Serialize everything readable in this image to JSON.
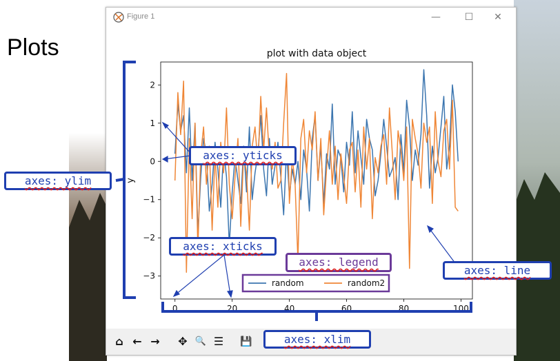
{
  "slide": {
    "heading": "Plots"
  },
  "window": {
    "title": "Figure 1",
    "controls": [
      "—",
      "☐",
      "✕"
    ]
  },
  "toolbar": {
    "buttons": [
      {
        "name": "home-icon",
        "glyph": "⌂"
      },
      {
        "name": "back-icon",
        "glyph": "←"
      },
      {
        "name": "forward-icon",
        "glyph": "→"
      },
      {
        "name": "pan-icon",
        "glyph": "✥"
      },
      {
        "name": "zoom-icon",
        "glyph": "🔍"
      },
      {
        "name": "configure-subplots-icon",
        "glyph": "☰"
      },
      {
        "name": "save-icon",
        "glyph": "💾"
      }
    ]
  },
  "annotations": {
    "yticks": "axes: yticks",
    "ylim": "axes: ylim",
    "xticks": "axes: xticks",
    "legend": "axes: legend",
    "line": "axes: line",
    "xlim": "axes: xlim"
  },
  "colors": {
    "annotation_blue": "#1f3fb0",
    "annotation_purple": "#6b3a99",
    "series1": "#3b75af",
    "series2": "#ef8636"
  },
  "chart_data": {
    "type": "line",
    "title": "plot with data object",
    "xlabel": "",
    "ylabel": "y",
    "xlim": [
      -5,
      104
    ],
    "ylim": [
      -3.6,
      2.6
    ],
    "xticks": [
      0,
      20,
      40,
      60,
      80,
      100
    ],
    "yticks": [
      -3,
      -2,
      -1,
      0,
      1,
      2
    ],
    "legend_position": "bottom-center",
    "grid": false,
    "series": [
      {
        "name": "random",
        "color": "#3b75af",
        "x": [
          0,
          1,
          2,
          3,
          4,
          5,
          6,
          7,
          8,
          9,
          10,
          11,
          12,
          13,
          14,
          15,
          16,
          17,
          18,
          19,
          20,
          21,
          22,
          23,
          24,
          25,
          26,
          27,
          28,
          29,
          30,
          31,
          32,
          33,
          34,
          35,
          36,
          37,
          38,
          39,
          40,
          41,
          42,
          43,
          44,
          45,
          46,
          47,
          48,
          49,
          50,
          51,
          52,
          53,
          54,
          55,
          56,
          57,
          58,
          59,
          60,
          61,
          62,
          63,
          64,
          65,
          66,
          67,
          68,
          69,
          70,
          71,
          72,
          73,
          74,
          75,
          76,
          77,
          78,
          79,
          80,
          81,
          82,
          83,
          84,
          85,
          86,
          87,
          88,
          89,
          90,
          91,
          92,
          93,
          94,
          95,
          96,
          97,
          98,
          99
        ],
        "y": [
          0.2,
          1.5,
          0.8,
          1.2,
          -0.3,
          1.4,
          -0.5,
          1.0,
          -1.9,
          -0.4,
          0.6,
          0.2,
          -1.3,
          -0.6,
          0.5,
          -0.2,
          -1.2,
          0.3,
          -0.4,
          -2.2,
          -0.8,
          0.1,
          -0.5,
          -1.1,
          0.4,
          -0.8,
          0.9,
          -1.0,
          -0.3,
          0.2,
          1.2,
          -0.2,
          -0.9,
          0.6,
          -0.6,
          -0.1,
          0.5,
          -0.4,
          -1.4,
          0.3,
          -0.9,
          -0.2,
          -0.6,
          0.0,
          -1.0,
          0.3,
          -0.2,
          -1.3,
          0.6,
          1.2,
          -0.5,
          0.4,
          -1.1,
          0.2,
          -0.2,
          1.5,
          -0.6,
          0.3,
          0.1,
          -0.8,
          0.5,
          -0.1,
          1.3,
          -0.3,
          0.8,
          0.1,
          -0.6,
          1.1,
          0.6,
          0.3,
          -0.9,
          -0.5,
          0.2,
          1.1,
          0.4,
          -0.4,
          -0.2,
          0.1,
          -1.0,
          0.7,
          -0.3,
          1.6,
          0.9,
          -0.5,
          0.3,
          -0.1,
          0.7,
          2.4,
          1.2,
          -0.7,
          0.4,
          -0.3,
          0.1,
          0.9,
          1.7,
          -0.2,
          0.4,
          2.0,
          1.3,
          0.0
        ]
      },
      {
        "name": "random2",
        "color": "#ef8636",
        "x": [
          0,
          1,
          2,
          3,
          4,
          5,
          6,
          7,
          8,
          9,
          10,
          11,
          12,
          13,
          14,
          15,
          16,
          17,
          18,
          19,
          20,
          21,
          22,
          23,
          24,
          25,
          26,
          27,
          28,
          29,
          30,
          31,
          32,
          33,
          34,
          35,
          36,
          37,
          38,
          39,
          40,
          41,
          42,
          43,
          44,
          45,
          46,
          47,
          48,
          49,
          50,
          51,
          52,
          53,
          54,
          55,
          56,
          57,
          58,
          59,
          60,
          61,
          62,
          63,
          64,
          65,
          66,
          67,
          68,
          69,
          70,
          71,
          72,
          73,
          74,
          75,
          76,
          77,
          78,
          79,
          80,
          81,
          82,
          83,
          84,
          85,
          86,
          87,
          88,
          89,
          90,
          91,
          92,
          93,
          94,
          95,
          96,
          97,
          98,
          99
        ],
        "y": [
          -0.5,
          1.8,
          0.7,
          2.1,
          -2.9,
          0.6,
          -1.5,
          1.0,
          -2.3,
          0.2,
          0.9,
          -0.6,
          0.4,
          -1.8,
          0.2,
          -1.2,
          0.5,
          -0.3,
          1.4,
          -0.6,
          -1.5,
          -0.4,
          0.6,
          -1.7,
          0.2,
          -0.3,
          -1.8,
          0.4,
          0.9,
          -0.1,
          1.7,
          0.3,
          1.4,
          0.1,
          -0.2,
          0.5,
          -0.7,
          -0.5,
          1.0,
          2.3,
          -1.1,
          0.1,
          -0.6,
          -2.6,
          0.6,
          1.1,
          -0.3,
          0.8,
          0.3,
          1.3,
          -0.5,
          0.6,
          -1.4,
          -0.2,
          0.8,
          -0.6,
          0.4,
          -1.0,
          0.2,
          -0.4,
          -1.1,
          0.3,
          0.5,
          -0.8,
          0.3,
          -1.2,
          0.9,
          -0.2,
          0.6,
          -1.5,
          0.1,
          -0.3,
          0.4,
          0.7,
          -0.6,
          1.4,
          0.2,
          -1.0,
          0.8,
          0.3,
          -0.5,
          0.9,
          -2.8,
          1.1,
          0.6,
          0.2,
          -0.7,
          1.0,
          0.5,
          0.9,
          -1.1,
          1.3,
          0.0,
          -0.4,
          0.8,
          1.1,
          -0.2,
          1.6,
          -1.2,
          -1.3
        ]
      }
    ]
  }
}
